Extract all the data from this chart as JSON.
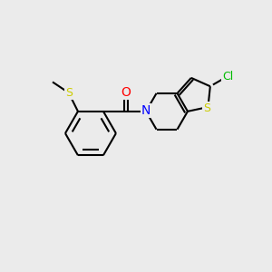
{
  "background_color": "#ebebeb",
  "bond_color": "#000000",
  "atom_colors": {
    "S_thioether": "#cccc00",
    "S_thiophene": "#cccc00",
    "N": "#0000ff",
    "O": "#ff0000",
    "Cl": "#00bb00"
  },
  "figsize": [
    3.0,
    3.0
  ],
  "dpi": 100,
  "bond_lw": 1.5,
  "xlim": [
    0,
    10
  ],
  "ylim": [
    0,
    10
  ]
}
